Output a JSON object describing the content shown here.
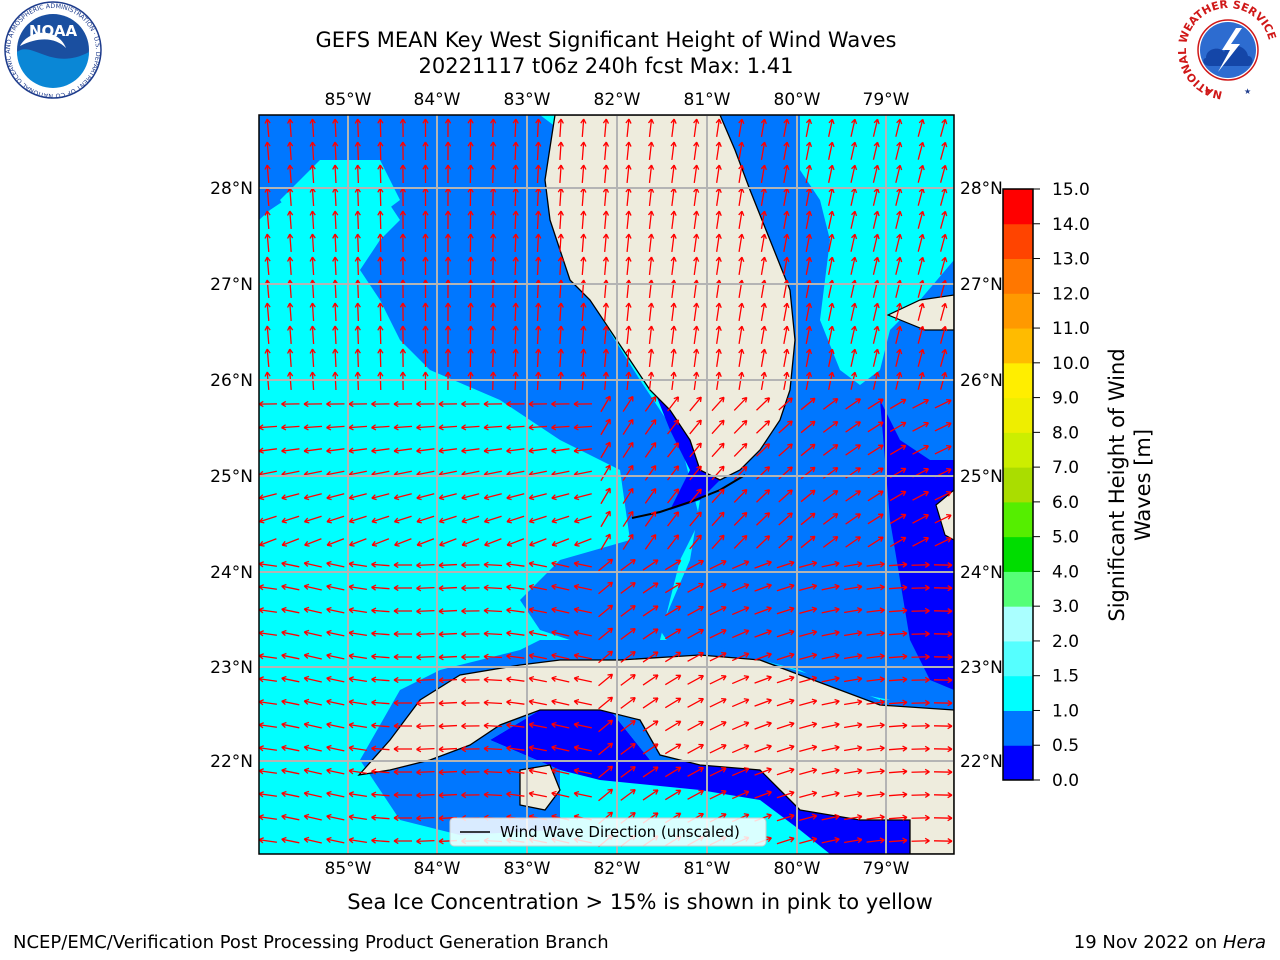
{
  "header": {
    "title_line1": "GEFS MEAN Key West Significant Height of Wind Waves",
    "title_line2": "20221117 t06z 240h fcst   Max: 1.41"
  },
  "logos": {
    "left": "NOAA",
    "left_ring_text": "NATIONAL OCEANIC AND ATMOSPHERIC ADMINISTRATION · U.S. DEPARTMENT OF COMMERCE",
    "right_ring_text": "NATIONAL WEATHER SERVICE"
  },
  "map": {
    "lon_labels": [
      "85°W",
      "84°W",
      "83°W",
      "82°W",
      "81°W",
      "80°W",
      "79°W"
    ],
    "lat_labels": [
      "28°N",
      "27°N",
      "26°N",
      "25°N",
      "24°N",
      "23°N",
      "22°N"
    ],
    "legend_label": "Wind Wave Direction (unscaled)",
    "arrow_color": "#ff0000",
    "land_color": "#eeecdd"
  },
  "colorbar": {
    "label_line1": "Significant Height of Wind",
    "label_line2": "Waves [m]",
    "ticks": [
      "0.0",
      "0.5",
      "1.0",
      "1.5",
      "2.0",
      "3.0",
      "4.0",
      "5.0",
      "6.0",
      "7.0",
      "8.0",
      "9.0",
      "10.0",
      "11.0",
      "12.0",
      "13.0",
      "14.0",
      "15.0"
    ],
    "colors": [
      "#0000ff",
      "#0077ff",
      "#00ffff",
      "#55ffff",
      "#aaffff",
      "#55ff77",
      "#00dd00",
      "#55ee00",
      "#aadd00",
      "#ccee00",
      "#eeee00",
      "#ffee00",
      "#ffbb00",
      "#ff9900",
      "#ff7700",
      "#ff4400",
      "#ff0000"
    ]
  },
  "chart_data": {
    "type": "heatmap",
    "title": "GEFS MEAN Key West Significant Height of Wind Waves",
    "subtitle": "20221117 t06z 240h fcst   Max: 1.41",
    "x_range_lon": [
      -86.0,
      -78.3
    ],
    "y_range_lat": [
      21.0,
      28.8
    ],
    "max_value": 1.41,
    "units": "m"
  },
  "footer": {
    "note": "Sea Ice Concentration > 15% is shown in pink to yellow",
    "left": "NCEP/EMC/Verification Post Processing Product Generation Branch",
    "right_prefix": "19 Nov 2022 on ",
    "right_host": "Hera"
  }
}
